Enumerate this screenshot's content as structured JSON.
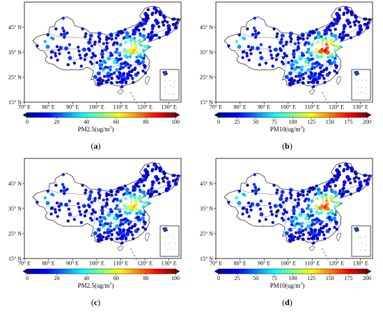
{
  "panels": [
    {
      "id": "a",
      "label_open": "(",
      "label_letter": "a",
      "label_close": ")",
      "variable": "PM2.5",
      "unit_label": "PM2.5(ug/m",
      "unit_sup": "3",
      "unit_close": ")",
      "colorbar_ticks": [
        "0",
        "20",
        "40",
        "60",
        "80",
        "100"
      ],
      "colorbar_range": [
        0,
        100
      ],
      "pollution_level": 0.55
    },
    {
      "id": "b",
      "label_open": "(",
      "label_letter": "b",
      "label_close": ")",
      "variable": "PM10",
      "unit_label": "PM10(ug/m",
      "unit_sup": "3",
      "unit_close": ")",
      "colorbar_ticks": [
        "0",
        "25",
        "50",
        "75",
        "100",
        "125",
        "150",
        "175",
        "200"
      ],
      "colorbar_range": [
        0,
        200
      ],
      "pollution_level": 0.78
    },
    {
      "id": "c",
      "label_open": "(",
      "label_letter": "c",
      "label_close": ")",
      "variable": "PM2.5",
      "unit_label": "PM2.5(ug/m",
      "unit_sup": "3",
      "unit_close": ")",
      "colorbar_ticks": [
        "0",
        "20",
        "40",
        "60",
        "80",
        "100"
      ],
      "colorbar_range": [
        0,
        100
      ],
      "pollution_level": 0.55
    },
    {
      "id": "d",
      "label_open": "(",
      "label_letter": "d",
      "label_close": ")",
      "variable": "PM10",
      "unit_label": "PM10(ug/m",
      "unit_sup": "3",
      "unit_close": ")",
      "colorbar_ticks": [
        "0",
        "25",
        "50",
        "75",
        "100",
        "125",
        "150",
        "175",
        "200"
      ],
      "colorbar_range": [
        0,
        200
      ],
      "pollution_level": 0.72
    }
  ],
  "lat_ticks": [
    "45° N",
    "35° N",
    "25° N",
    "15° N"
  ],
  "lon_ticks": [
    "70° E",
    "80° E",
    "90° E",
    "100° E",
    "110° E",
    "120° E",
    "130° E"
  ],
  "colors": {
    "colormap": [
      "#00008f",
      "#0000ff",
      "#0080ff",
      "#00ffff",
      "#80ff80",
      "#ffff00",
      "#ff8000",
      "#ff0000",
      "#800000"
    ],
    "border": "#555555",
    "frame": "#000000"
  }
}
